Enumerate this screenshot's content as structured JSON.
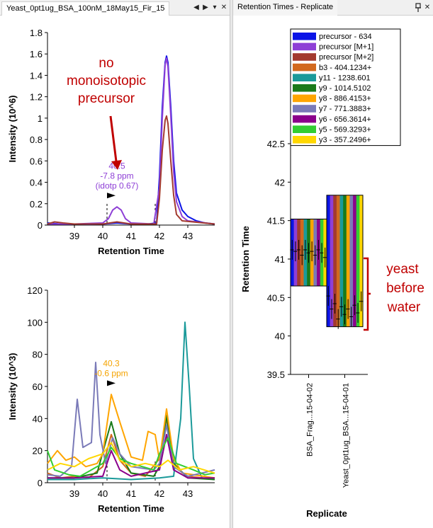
{
  "left_panel": {
    "tab_title": "Yeast_0pt1ug_BSA_100nM_18May15_Fir_15",
    "controls": {
      "prev": "◀",
      "next": "▶",
      "menu": "▾",
      "close": "✕"
    }
  },
  "right_panel": {
    "tab_title": "Retention Times - Replicate",
    "controls": {
      "pin": "📌",
      "close": "✕"
    }
  },
  "annotations": {
    "no_mono_line1": "no",
    "no_mono_line2": "monoisotopic",
    "no_mono_line3": "precursor",
    "yeast_line1": "yeast",
    "yeast_line2": "before",
    "yeast_line3": "water"
  },
  "chart_data": [
    {
      "type": "line",
      "xlabel": "Retention Time",
      "ylabel": "Intensity (10^6)",
      "xlim": [
        38.05,
        43.95
      ],
      "ylim": [
        0,
        1.8
      ],
      "xticks": [
        39,
        40,
        41,
        42,
        43
      ],
      "yticks": [
        0,
        0.2,
        0.4,
        0.6,
        0.8,
        1,
        1.2,
        1.4,
        1.6,
        1.8
      ],
      "peak_label": {
        "x": 40.5,
        "y": 0.17,
        "lines": [
          "40.5",
          "-7.8 ppm",
          "(idotp 0.67)"
        ],
        "color": "#8e3fd6"
      },
      "integration_boundaries": [
        40.15,
        41.85
      ],
      "series": [
        {
          "name": "precursor",
          "color": "#0a14e6",
          "points": [
            [
              38.05,
              0.02
            ],
            [
              38.5,
              0.01
            ],
            [
              39.0,
              0.01
            ],
            [
              39.5,
              0.008
            ],
            [
              40.0,
              0.01
            ],
            [
              40.5,
              0.02
            ],
            [
              41.0,
              0.01
            ],
            [
              41.6,
              0.01
            ],
            [
              41.9,
              0.02
            ],
            [
              42.0,
              0.45
            ],
            [
              42.1,
              1.1
            ],
            [
              42.2,
              1.52
            ],
            [
              42.25,
              1.58
            ],
            [
              42.3,
              1.52
            ],
            [
              42.4,
              1.1
            ],
            [
              42.5,
              0.6
            ],
            [
              42.6,
              0.3
            ],
            [
              42.8,
              0.14
            ],
            [
              43.0,
              0.08
            ],
            [
              43.3,
              0.04
            ],
            [
              43.6,
              0.02
            ],
            [
              43.95,
              0.01
            ]
          ]
        },
        {
          "name": "precursor [M+1]",
          "color": "#8e3fd6",
          "points": [
            [
              38.05,
              0.01
            ],
            [
              39.0,
              0.01
            ],
            [
              40.0,
              0.02
            ],
            [
              40.2,
              0.06
            ],
            [
              40.35,
              0.14
            ],
            [
              40.5,
              0.17
            ],
            [
              40.65,
              0.14
            ],
            [
              40.8,
              0.06
            ],
            [
              41.0,
              0.02
            ],
            [
              41.8,
              0.01
            ],
            [
              42.0,
              0.35
            ],
            [
              42.1,
              1.0
            ],
            [
              42.2,
              1.5
            ],
            [
              42.25,
              1.56
            ],
            [
              42.3,
              1.48
            ],
            [
              42.4,
              1.02
            ],
            [
              42.5,
              0.5
            ],
            [
              42.6,
              0.22
            ],
            [
              42.8,
              0.08
            ],
            [
              43.0,
              0.04
            ],
            [
              43.95,
              0.01
            ]
          ]
        },
        {
          "name": "precursor [M+2]",
          "color": "#a33a2f",
          "points": [
            [
              38.05,
              0.01
            ],
            [
              38.3,
              0.03
            ],
            [
              38.6,
              0.02
            ],
            [
              39.0,
              0.01
            ],
            [
              40.0,
              0.01
            ],
            [
              40.5,
              0.03
            ],
            [
              41.0,
              0.01
            ],
            [
              41.9,
              0.01
            ],
            [
              42.0,
              0.25
            ],
            [
              42.1,
              0.7
            ],
            [
              42.2,
              0.98
            ],
            [
              42.25,
              1.02
            ],
            [
              42.3,
              0.95
            ],
            [
              42.4,
              0.6
            ],
            [
              42.5,
              0.28
            ],
            [
              42.6,
              0.1
            ],
            [
              42.8,
              0.04
            ],
            [
              43.95,
              0.01
            ]
          ]
        }
      ]
    },
    {
      "type": "line",
      "xlabel": "Retention Time",
      "ylabel": "Intensity (10^3)",
      "xlim": [
        38.05,
        43.95
      ],
      "ylim": [
        0,
        120
      ],
      "xticks": [
        39,
        40,
        41,
        42,
        43
      ],
      "yticks": [
        0,
        20,
        40,
        60,
        80,
        100,
        120
      ],
      "peak_label": {
        "x": 40.3,
        "y": 55,
        "lines": [
          "40.3",
          "-0.6 ppm"
        ],
        "color": "#f5a300"
      },
      "integration_boundaries": [
        40.15,
        41.85
      ],
      "series": [
        {
          "name": "b3",
          "color": "#d2691e",
          "points": [
            [
              38.05,
              6
            ],
            [
              38.5,
              3
            ],
            [
              39.0,
              4
            ],
            [
              39.5,
              3
            ],
            [
              40.0,
              10
            ],
            [
              40.3,
              30
            ],
            [
              40.6,
              14
            ],
            [
              41.0,
              6
            ],
            [
              41.5,
              4
            ],
            [
              42.0,
              15
            ],
            [
              42.25,
              40
            ],
            [
              42.5,
              10
            ],
            [
              43.0,
              4
            ],
            [
              43.5,
              3
            ],
            [
              43.95,
              2
            ]
          ]
        },
        {
          "name": "y11",
          "color": "#1b9a9a",
          "points": [
            [
              38.05,
              2
            ],
            [
              39.0,
              2
            ],
            [
              40.0,
              3
            ],
            [
              41.0,
              2
            ],
            [
              42.0,
              3
            ],
            [
              42.5,
              4
            ],
            [
              42.75,
              40
            ],
            [
              42.9,
              100
            ],
            [
              43.05,
              60
            ],
            [
              43.2,
              15
            ],
            [
              43.5,
              3
            ],
            [
              43.95,
              2
            ]
          ]
        },
        {
          "name": "y9",
          "color": "#1a7a1a",
          "points": [
            [
              38.05,
              3
            ],
            [
              39.0,
              3
            ],
            [
              39.8,
              6
            ],
            [
              40.3,
              38
            ],
            [
              40.6,
              18
            ],
            [
              41.0,
              6
            ],
            [
              41.8,
              4
            ],
            [
              42.0,
              10
            ],
            [
              42.25,
              42
            ],
            [
              42.5,
              12
            ],
            [
              43.0,
              3
            ],
            [
              43.95,
              2
            ]
          ]
        },
        {
          "name": "y8",
          "color": "#ffa500",
          "points": [
            [
              38.05,
              12
            ],
            [
              38.4,
              20
            ],
            [
              38.7,
              14
            ],
            [
              39.0,
              16
            ],
            [
              39.4,
              10
            ],
            [
              39.8,
              12
            ],
            [
              40.0,
              18
            ],
            [
              40.3,
              55
            ],
            [
              40.6,
              38
            ],
            [
              41.0,
              16
            ],
            [
              41.4,
              14
            ],
            [
              41.6,
              32
            ],
            [
              41.85,
              30
            ],
            [
              42.0,
              14
            ],
            [
              42.25,
              46
            ],
            [
              42.5,
              15
            ],
            [
              42.8,
              6
            ],
            [
              43.2,
              5
            ],
            [
              43.95,
              3
            ]
          ]
        },
        {
          "name": "y7",
          "color": "#7a7ab8",
          "points": [
            [
              38.05,
              5
            ],
            [
              38.5,
              4
            ],
            [
              38.9,
              10
            ],
            [
              39.1,
              52
            ],
            [
              39.3,
              22
            ],
            [
              39.6,
              25
            ],
            [
              39.75,
              75
            ],
            [
              39.9,
              30
            ],
            [
              40.1,
              12
            ],
            [
              40.35,
              28
            ],
            [
              40.6,
              18
            ],
            [
              41.0,
              10
            ],
            [
              41.8,
              8
            ],
            [
              42.0,
              12
            ],
            [
              42.25,
              36
            ],
            [
              42.5,
              10
            ],
            [
              43.0,
              4
            ],
            [
              43.5,
              6
            ],
            [
              43.95,
              8
            ]
          ]
        },
        {
          "name": "y6",
          "color": "#8b008b",
          "points": [
            [
              38.05,
              3
            ],
            [
              39.0,
              3
            ],
            [
              40.0,
              4
            ],
            [
              40.3,
              20
            ],
            [
              40.6,
              8
            ],
            [
              41.0,
              4
            ],
            [
              42.0,
              8
            ],
            [
              42.25,
              30
            ],
            [
              42.5,
              8
            ],
            [
              43.0,
              3
            ],
            [
              43.95,
              3
            ]
          ]
        },
        {
          "name": "y5",
          "color": "#32cd32",
          "points": [
            [
              38.05,
              20
            ],
            [
              38.3,
              8
            ],
            [
              38.8,
              5
            ],
            [
              39.2,
              4
            ],
            [
              39.6,
              8
            ],
            [
              40.0,
              12
            ],
            [
              40.3,
              22
            ],
            [
              40.6,
              15
            ],
            [
              41.0,
              12
            ],
            [
              41.4,
              10
            ],
            [
              41.8,
              8
            ],
            [
              42.0,
              18
            ],
            [
              42.3,
              28
            ],
            [
              42.6,
              12
            ],
            [
              43.2,
              8
            ],
            [
              43.6,
              5
            ],
            [
              43.95,
              6
            ]
          ]
        },
        {
          "name": "y3",
          "color": "#ffd700",
          "points": [
            [
              38.05,
              8
            ],
            [
              38.5,
              12
            ],
            [
              39.0,
              10
            ],
            [
              39.5,
              15
            ],
            [
              40.0,
              18
            ],
            [
              40.3,
              25
            ],
            [
              40.6,
              14
            ],
            [
              41.0,
              10
            ],
            [
              41.5,
              12
            ],
            [
              42.0,
              10
            ],
            [
              42.3,
              14
            ],
            [
              42.7,
              8
            ],
            [
              43.2,
              10
            ],
            [
              43.95,
              6
            ]
          ]
        }
      ]
    },
    {
      "type": "box",
      "xlabel": "Replicate",
      "ylabel": "Retention Time",
      "ylim": [
        39.5,
        42.5
      ],
      "yticks": [
        39.5,
        40,
        40.5,
        41,
        41.5,
        42,
        42.5
      ],
      "categories": [
        "BSA_Frag...15-04-02",
        "Yeast_0pt1ug_BSA...15-04-01"
      ],
      "legend": {
        "position": "top-right",
        "entries": [
          {
            "label": "precursor - 634",
            "color": "#0a14e6"
          },
          {
            "label": "precursor [M+1]",
            "color": "#8e3fd6"
          },
          {
            "label": "precursor [M+2]",
            "color": "#a33a2f"
          },
          {
            "label": "b3 - 404.1234+",
            "color": "#d2691e"
          },
          {
            "label": "y11 - 1238.601",
            "color": "#1b9a9a"
          },
          {
            "label": "y9 - 1014.5102",
            "color": "#1a7a1a"
          },
          {
            "label": "y8 - 886.4153+",
            "color": "#ffa500"
          },
          {
            "label": "y7 - 771.3883+",
            "color": "#7a7ab8"
          },
          {
            "label": "y6 - 656.3614+",
            "color": "#8b008b"
          },
          {
            "label": "y5 - 569.3293+",
            "color": "#32cd32"
          },
          {
            "label": "y3 - 357.2496+",
            "color": "#ffd700"
          }
        ]
      },
      "groups": [
        {
          "category": "BSA_Frag...15-04-02",
          "start": 41.52,
          "end": 40.65,
          "apex": [
            41.12,
            41.1,
            41.12,
            41.05,
            41.12,
            41.08,
            41.1,
            41.05,
            41.12,
            41.08,
            41.02
          ]
        },
        {
          "category": "Yeast_0pt1ug_BSA...15-04-01",
          "start": 41.83,
          "end": 40.12,
          "apex": [
            40.52,
            40.35,
            40.42,
            40.22,
            40.38,
            40.28,
            40.35,
            40.25,
            40.4,
            40.3,
            40.45
          ]
        }
      ]
    }
  ]
}
